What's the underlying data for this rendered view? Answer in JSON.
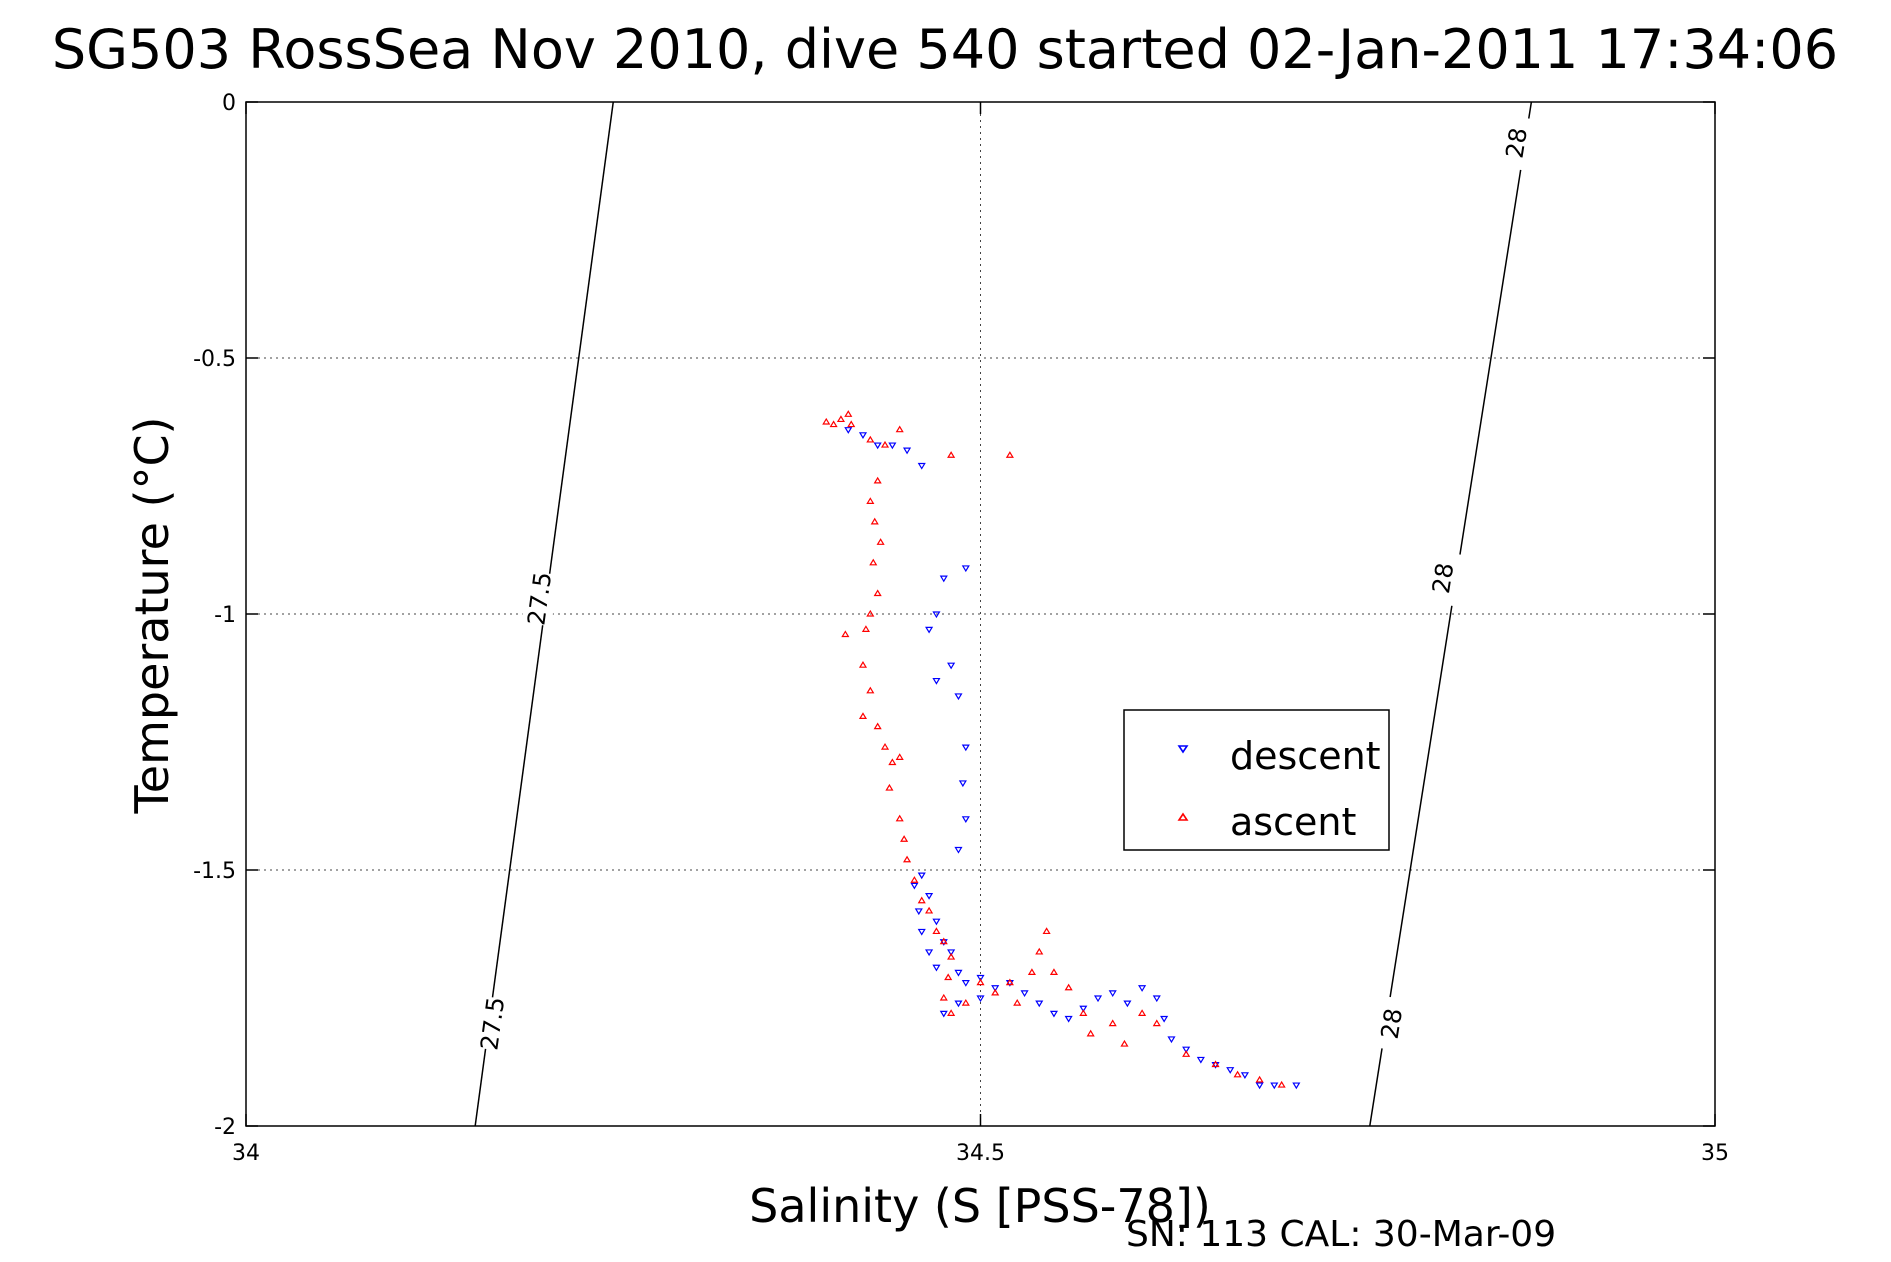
{
  "chart_data": {
    "type": "scatter",
    "title": "SG503 RossSea Nov 2010, dive 540 started 02-Jan-2011 17:34:06",
    "xlabel": "Salinity (S [PSS-78])",
    "ylabel": "Temperature (°C)",
    "xlim": [
      34,
      35
    ],
    "ylim": [
      -2,
      0
    ],
    "x_ticks": [
      "34",
      "34.5",
      "35"
    ],
    "y_ticks": [
      "0",
      "-0.5",
      "-1",
      "-1.5",
      "-2"
    ],
    "grid": true,
    "legend_position": "middle-right",
    "footer": "SN: 113  CAL: 30-Mar-09",
    "density_contours": [
      {
        "label": "27.5",
        "points": [
          [
            34.156,
            -2.0
          ],
          [
            34.25,
            0.0
          ]
        ],
        "labels_at": [
          [
            34.168,
            -1.8
          ],
          [
            34.2,
            -0.97
          ]
        ]
      },
      {
        "label": "28",
        "points": [
          [
            34.765,
            -2.0
          ],
          [
            34.875,
            0.0
          ]
        ],
        "labels_at": [
          [
            34.78,
            -1.8
          ],
          [
            34.815,
            -0.93
          ],
          [
            34.865,
            -0.08
          ]
        ]
      }
    ],
    "series": [
      {
        "name": "descent",
        "color": "#0000ff",
        "marker": "triangle-down",
        "points": [
          [
            34.41,
            -0.64
          ],
          [
            34.42,
            -0.65
          ],
          [
            34.43,
            -0.67
          ],
          [
            34.44,
            -0.67
          ],
          [
            34.45,
            -0.68
          ],
          [
            34.46,
            -0.71
          ],
          [
            34.49,
            -0.91
          ],
          [
            34.475,
            -0.93
          ],
          [
            34.47,
            -1.0
          ],
          [
            34.465,
            -1.03
          ],
          [
            34.48,
            -1.1
          ],
          [
            34.47,
            -1.13
          ],
          [
            34.485,
            -1.16
          ],
          [
            34.49,
            -1.26
          ],
          [
            34.488,
            -1.33
          ],
          [
            34.49,
            -1.4
          ],
          [
            34.485,
            -1.46
          ],
          [
            34.46,
            -1.51
          ],
          [
            34.455,
            -1.53
          ],
          [
            34.465,
            -1.55
          ],
          [
            34.458,
            -1.58
          ],
          [
            34.47,
            -1.6
          ],
          [
            34.46,
            -1.62
          ],
          [
            34.475,
            -1.64
          ],
          [
            34.465,
            -1.66
          ],
          [
            34.48,
            -1.66
          ],
          [
            34.47,
            -1.69
          ],
          [
            34.485,
            -1.7
          ],
          [
            34.49,
            -1.72
          ],
          [
            34.5,
            -1.71
          ],
          [
            34.51,
            -1.73
          ],
          [
            34.52,
            -1.72
          ],
          [
            34.53,
            -1.74
          ],
          [
            34.54,
            -1.76
          ],
          [
            34.55,
            -1.78
          ],
          [
            34.56,
            -1.79
          ],
          [
            34.57,
            -1.77
          ],
          [
            34.58,
            -1.75
          ],
          [
            34.59,
            -1.74
          ],
          [
            34.6,
            -1.76
          ],
          [
            34.61,
            -1.73
          ],
          [
            34.62,
            -1.75
          ],
          [
            34.625,
            -1.79
          ],
          [
            34.63,
            -1.83
          ],
          [
            34.64,
            -1.85
          ],
          [
            34.65,
            -1.87
          ],
          [
            34.66,
            -1.88
          ],
          [
            34.67,
            -1.89
          ],
          [
            34.68,
            -1.9
          ],
          [
            34.69,
            -1.92
          ],
          [
            34.7,
            -1.92
          ],
          [
            34.715,
            -1.92
          ],
          [
            34.475,
            -1.78
          ],
          [
            34.485,
            -1.76
          ],
          [
            34.5,
            -1.75
          ]
        ]
      },
      {
        "name": "ascent",
        "color": "#ff0000",
        "marker": "triangle-up",
        "points": [
          [
            34.395,
            -0.625
          ],
          [
            34.4,
            -0.63
          ],
          [
            34.405,
            -0.62
          ],
          [
            34.41,
            -0.61
          ],
          [
            34.412,
            -0.63
          ],
          [
            34.425,
            -0.66
          ],
          [
            34.435,
            -0.67
          ],
          [
            34.445,
            -0.64
          ],
          [
            34.48,
            -0.69
          ],
          [
            34.52,
            -0.69
          ],
          [
            34.43,
            -0.74
          ],
          [
            34.425,
            -0.78
          ],
          [
            34.428,
            -0.82
          ],
          [
            34.432,
            -0.86
          ],
          [
            34.427,
            -0.9
          ],
          [
            34.43,
            -0.96
          ],
          [
            34.425,
            -1.0
          ],
          [
            34.422,
            -1.03
          ],
          [
            34.408,
            -1.04
          ],
          [
            34.42,
            -1.1
          ],
          [
            34.425,
            -1.15
          ],
          [
            34.42,
            -1.2
          ],
          [
            34.43,
            -1.22
          ],
          [
            34.435,
            -1.26
          ],
          [
            34.44,
            -1.29
          ],
          [
            34.445,
            -1.28
          ],
          [
            34.438,
            -1.34
          ],
          [
            34.445,
            -1.4
          ],
          [
            34.448,
            -1.44
          ],
          [
            34.45,
            -1.48
          ],
          [
            34.455,
            -1.52
          ],
          [
            34.46,
            -1.56
          ],
          [
            34.465,
            -1.58
          ],
          [
            34.47,
            -1.62
          ],
          [
            34.475,
            -1.64
          ],
          [
            34.48,
            -1.67
          ],
          [
            34.478,
            -1.71
          ],
          [
            34.475,
            -1.75
          ],
          [
            34.48,
            -1.78
          ],
          [
            34.49,
            -1.76
          ],
          [
            34.5,
            -1.72
          ],
          [
            34.51,
            -1.74
          ],
          [
            34.52,
            -1.72
          ],
          [
            34.525,
            -1.76
          ],
          [
            34.535,
            -1.7
          ],
          [
            34.54,
            -1.66
          ],
          [
            34.545,
            -1.62
          ],
          [
            34.55,
            -1.7
          ],
          [
            34.56,
            -1.73
          ],
          [
            34.57,
            -1.78
          ],
          [
            34.575,
            -1.82
          ],
          [
            34.59,
            -1.8
          ],
          [
            34.61,
            -1.78
          ],
          [
            34.62,
            -1.8
          ],
          [
            34.64,
            -1.86
          ],
          [
            34.66,
            -1.88
          ],
          [
            34.675,
            -1.9
          ],
          [
            34.69,
            -1.91
          ],
          [
            34.705,
            -1.92
          ],
          [
            34.598,
            -1.84
          ]
        ]
      }
    ]
  }
}
